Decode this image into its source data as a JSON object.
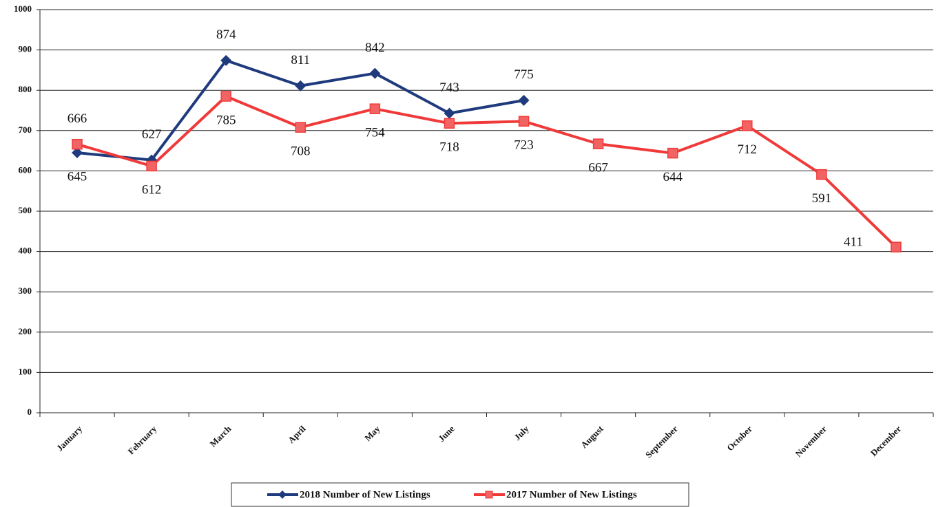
{
  "chart_data": {
    "type": "line",
    "categories": [
      "January",
      "February",
      "March",
      "April",
      "May",
      "June",
      "July",
      "August",
      "September",
      "October",
      "November",
      "December"
    ],
    "series": [
      {
        "name": "2018 Number of New Listings",
        "color": "#1f3b7d",
        "marker": "diamond",
        "values": [
          645,
          627,
          874,
          811,
          842,
          743,
          775,
          null,
          null,
          null,
          null,
          null
        ]
      },
      {
        "name": "2017 Number of New Listings",
        "color": "#f03a3a",
        "marker": "square",
        "values": [
          666,
          612,
          785,
          708,
          754,
          718,
          723,
          667,
          644,
          712,
          591,
          411
        ]
      }
    ],
    "ylim": [
      0,
      1000
    ],
    "yticks": [
      0,
      100,
      200,
      300,
      400,
      500,
      600,
      700,
      800,
      900,
      1000
    ],
    "grid": true,
    "legend": "bottom"
  }
}
